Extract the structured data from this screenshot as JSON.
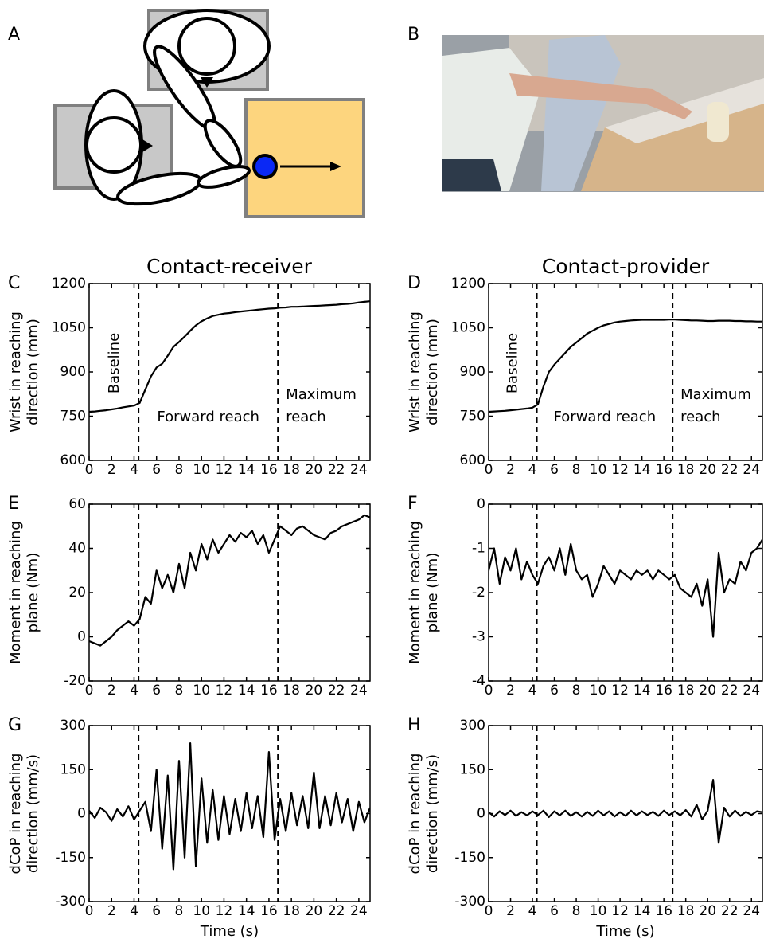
{
  "panel_labels": [
    "A",
    "B",
    "C",
    "D",
    "E",
    "F",
    "G",
    "H"
  ],
  "column_titles": [
    "Contact-receiver",
    "Contact-provider"
  ],
  "chart_data": [
    {
      "type": "line",
      "ylabel": [
        "Wrist in reaching",
        "direction (mm)"
      ],
      "xlim": [
        0,
        25
      ],
      "xticks": [
        0,
        2,
        4,
        6,
        8,
        10,
        12,
        14,
        16,
        18,
        20,
        22,
        24
      ],
      "ylim": [
        600,
        1200
      ],
      "yticks": [
        600,
        750,
        900,
        1050,
        1200
      ],
      "vlines": [
        4.4,
        16.8
      ],
      "annotations": [
        "Baseline",
        "Forward reach",
        "Maximum",
        "reach"
      ],
      "x": [
        0,
        0.5,
        1,
        1.5,
        2,
        2.5,
        3,
        3.5,
        4,
        4.5,
        5,
        5.5,
        6,
        6.5,
        7,
        7.5,
        8,
        8.5,
        9,
        9.5,
        10,
        10.5,
        11,
        11.5,
        12,
        12.5,
        13,
        13.5,
        14,
        14.5,
        15,
        15.5,
        16,
        16.5,
        17,
        17.5,
        18,
        18.5,
        19,
        19.5,
        20,
        20.5,
        21,
        21.5,
        22,
        22.5,
        23,
        23.5,
        24,
        24.5,
        25
      ],
      "series": [
        {
          "color": "#000000",
          "values": [
            765,
            766,
            768,
            770,
            773,
            776,
            780,
            783,
            786,
            795,
            840,
            885,
            915,
            928,
            955,
            985,
            1002,
            1020,
            1040,
            1058,
            1072,
            1082,
            1090,
            1094,
            1098,
            1100,
            1103,
            1105,
            1107,
            1109,
            1111,
            1113,
            1115,
            1116,
            1118,
            1119,
            1121,
            1121,
            1122,
            1123,
            1124,
            1125,
            1126,
            1127,
            1128,
            1130,
            1131,
            1133,
            1136,
            1138,
            1140
          ]
        }
      ]
    },
    {
      "type": "line",
      "ylabel": [
        "Wrist in reaching",
        "direction (mm)"
      ],
      "xlim": [
        0,
        25
      ],
      "xticks": [
        0,
        2,
        4,
        6,
        8,
        10,
        12,
        14,
        16,
        18,
        20,
        22,
        24
      ],
      "ylim": [
        600,
        1200
      ],
      "yticks": [
        600,
        750,
        900,
        1050,
        1200
      ],
      "vlines": [
        4.4,
        16.8
      ],
      "annotations": [
        "Baseline",
        "Forward reach",
        "Maximum",
        "reach"
      ],
      "x": [
        0,
        0.5,
        1,
        1.5,
        2,
        2.5,
        3,
        3.5,
        4,
        4.5,
        5,
        5.5,
        6,
        6.5,
        7,
        7.5,
        8,
        8.5,
        9,
        9.5,
        10,
        10.5,
        11,
        11.5,
        12,
        12.5,
        13,
        13.5,
        14,
        14.5,
        15,
        15.5,
        16,
        16.5,
        17,
        17.5,
        18,
        18.5,
        19,
        19.5,
        20,
        20.5,
        21,
        21.5,
        22,
        22.5,
        23,
        23.5,
        24,
        24.5,
        25
      ],
      "series": [
        {
          "color": "#000000",
          "values": [
            765,
            766,
            767,
            768,
            770,
            772,
            774,
            776,
            779,
            790,
            850,
            900,
            925,
            945,
            965,
            985,
            1000,
            1015,
            1030,
            1040,
            1050,
            1058,
            1063,
            1068,
            1071,
            1073,
            1075,
            1076,
            1077,
            1077,
            1077,
            1077,
            1077,
            1078,
            1078,
            1077,
            1076,
            1075,
            1075,
            1074,
            1073,
            1073,
            1074,
            1074,
            1074,
            1073,
            1073,
            1072,
            1072,
            1071,
            1071
          ]
        }
      ]
    },
    {
      "type": "line",
      "ylabel": [
        "Moment in reaching",
        "plane (Nm)"
      ],
      "xlim": [
        0,
        25
      ],
      "xticks": [
        0,
        2,
        4,
        6,
        8,
        10,
        12,
        14,
        16,
        18,
        20,
        22,
        24
      ],
      "ylim": [
        -20,
        60
      ],
      "yticks": [
        -20,
        0,
        20,
        40,
        60
      ],
      "vlines": [
        4.4,
        16.8
      ],
      "x": [
        0,
        0.5,
        1,
        1.5,
        2,
        2.5,
        3,
        3.5,
        4,
        4.5,
        5,
        5.5,
        6,
        6.5,
        7,
        7.5,
        8,
        8.5,
        9,
        9.5,
        10,
        10.5,
        11,
        11.5,
        12,
        12.5,
        13,
        13.5,
        14,
        14.5,
        15,
        15.5,
        16,
        16.5,
        17,
        17.5,
        18,
        18.5,
        19,
        19.5,
        20,
        20.5,
        21,
        21.5,
        22,
        22.5,
        23,
        23.5,
        24,
        24.5,
        25
      ],
      "series": [
        {
          "color": "#000000",
          "values": [
            -2,
            -3,
            -4,
            -2,
            0,
            3,
            5,
            7,
            5,
            8,
            18,
            15,
            30,
            22,
            28,
            20,
            33,
            22,
            38,
            30,
            42,
            35,
            44,
            38,
            42,
            46,
            43,
            47,
            45,
            48,
            42,
            46,
            38,
            44,
            50,
            48,
            46,
            49,
            50,
            48,
            46,
            45,
            44,
            47,
            48,
            50,
            51,
            52,
            53,
            55,
            54
          ]
        }
      ]
    },
    {
      "type": "line",
      "ylabel": [
        "Moment in reaching",
        "plane (Nm)"
      ],
      "xlim": [
        0,
        25
      ],
      "xticks": [
        0,
        2,
        4,
        6,
        8,
        10,
        12,
        14,
        16,
        18,
        20,
        22,
        24
      ],
      "ylim": [
        -4,
        0
      ],
      "yticks": [
        -4,
        -3,
        -2,
        -1,
        0
      ],
      "vlines": [
        4.4,
        16.8
      ],
      "x": [
        0,
        0.5,
        1,
        1.5,
        2,
        2.5,
        3,
        3.5,
        4,
        4.5,
        5,
        5.5,
        6,
        6.5,
        7,
        7.5,
        8,
        8.5,
        9,
        9.5,
        10,
        10.5,
        11,
        11.5,
        12,
        12.5,
        13,
        13.5,
        14,
        14.5,
        15,
        15.5,
        16,
        16.5,
        17,
        17.5,
        18,
        18.5,
        19,
        19.5,
        20,
        20.5,
        21,
        21.5,
        22,
        22.5,
        23,
        23.5,
        24,
        24.5,
        25
      ],
      "series": [
        {
          "color": "#000000",
          "values": [
            -1.5,
            -1.0,
            -1.8,
            -1.2,
            -1.5,
            -1.0,
            -1.7,
            -1.3,
            -1.6,
            -1.8,
            -1.4,
            -1.2,
            -1.5,
            -1.0,
            -1.6,
            -0.9,
            -1.5,
            -1.7,
            -1.6,
            -2.1,
            -1.8,
            -1.4,
            -1.6,
            -1.8,
            -1.5,
            -1.6,
            -1.7,
            -1.5,
            -1.6,
            -1.5,
            -1.7,
            -1.5,
            -1.6,
            -1.7,
            -1.6,
            -1.9,
            -2.0,
            -2.1,
            -1.8,
            -2.3,
            -1.7,
            -3.0,
            -1.1,
            -2.0,
            -1.7,
            -1.8,
            -1.3,
            -1.5,
            -1.1,
            -1.0,
            -0.8
          ]
        }
      ]
    },
    {
      "type": "line",
      "ylabel": [
        "dCoP in reaching",
        "direction (mm/s)"
      ],
      "xlabel": "Time (s)",
      "xlim": [
        0,
        25
      ],
      "xticks": [
        0,
        2,
        4,
        6,
        8,
        10,
        12,
        14,
        16,
        18,
        20,
        22,
        24
      ],
      "ylim": [
        -300,
        300
      ],
      "yticks": [
        -300,
        -150,
        0,
        150,
        300
      ],
      "vlines": [
        4.4,
        16.8
      ],
      "x": [
        0,
        0.5,
        1,
        1.5,
        2,
        2.5,
        3,
        3.5,
        4,
        4.5,
        5,
        5.5,
        6,
        6.5,
        7,
        7.5,
        8,
        8.5,
        9,
        9.5,
        10,
        10.5,
        11,
        11.5,
        12,
        12.5,
        13,
        13.5,
        14,
        14.5,
        15,
        15.5,
        16,
        16.5,
        17,
        17.5,
        18,
        18.5,
        19,
        19.5,
        20,
        20.5,
        21,
        21.5,
        22,
        22.5,
        23,
        23.5,
        24,
        24.5,
        25
      ],
      "series": [
        {
          "color": "#000000",
          "values": [
            10,
            -15,
            20,
            5,
            -25,
            15,
            -10,
            25,
            -20,
            10,
            40,
            -60,
            150,
            -120,
            130,
            -190,
            180,
            -150,
            240,
            -180,
            120,
            -100,
            80,
            -90,
            60,
            -70,
            50,
            -60,
            70,
            -50,
            60,
            -80,
            210,
            -90,
            50,
            -60,
            70,
            -40,
            60,
            -50,
            140,
            -50,
            60,
            -40,
            70,
            -30,
            50,
            -60,
            40,
            -30,
            20
          ]
        }
      ]
    },
    {
      "type": "line",
      "ylabel": [
        "dCoP in reaching",
        "direction (mm/s)"
      ],
      "xlabel": "Time (s)",
      "xlim": [
        0,
        25
      ],
      "xticks": [
        0,
        2,
        4,
        6,
        8,
        10,
        12,
        14,
        16,
        18,
        20,
        22,
        24
      ],
      "ylim": [
        -300,
        300
      ],
      "yticks": [
        -300,
        -150,
        0,
        150,
        300
      ],
      "vlines": [
        4.4,
        16.8
      ],
      "x": [
        0,
        0.5,
        1,
        1.5,
        2,
        2.5,
        3,
        3.5,
        4,
        4.5,
        5,
        5.5,
        6,
        6.5,
        7,
        7.5,
        8,
        8.5,
        9,
        9.5,
        10,
        10.5,
        11,
        11.5,
        12,
        12.5,
        13,
        13.5,
        14,
        14.5,
        15,
        15.5,
        16,
        16.5,
        17,
        17.5,
        18,
        18.5,
        19,
        19.5,
        20,
        20.5,
        21,
        21.5,
        22,
        22.5,
        23,
        23.5,
        24,
        24.5,
        25
      ],
      "series": [
        {
          "color": "#000000",
          "values": [
            5,
            -10,
            8,
            -5,
            10,
            -8,
            5,
            -6,
            8,
            -5,
            10,
            -12,
            8,
            -6,
            10,
            -8,
            5,
            -10,
            6,
            -8,
            10,
            -6,
            8,
            -10,
            5,
            -8,
            10,
            -6,
            8,
            -5,
            6,
            -8,
            10,
            -5,
            8,
            -6,
            12,
            -10,
            30,
            -20,
            10,
            115,
            -100,
            20,
            -10,
            10,
            -8,
            6,
            -5,
            8,
            5
          ]
        }
      ]
    }
  ]
}
